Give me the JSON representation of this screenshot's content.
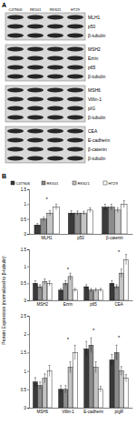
{
  "panel_a": {
    "label": "A",
    "columns": [
      "C4TN06",
      "RK501",
      "RKS21",
      "HT29"
    ],
    "groups": [
      [
        "MLH1",
        "p50",
        "β-tubulin"
      ],
      [
        "MSH2",
        "Ezrin",
        "p65",
        "β-tubulin"
      ],
      [
        "MSH6",
        "Villin-1",
        "pIG",
        "β-tubulin"
      ],
      [
        "CEA",
        "E-cadherin",
        "β-catenin",
        "β-tubulin"
      ]
    ]
  },
  "panel_b": {
    "label": "B",
    "y_label": "Protein Expression (normalized to β-tubulin)"
  },
  "chart_data": [
    {
      "type": "bar",
      "categories": [
        "MLH1",
        "p50",
        "β-catenin"
      ],
      "ylim": [
        0,
        1.5
      ],
      "yticks": [
        0,
        0.5,
        1,
        1.5
      ],
      "legend": "top",
      "series": [
        {
          "name": "C4TN06",
          "color": "#3a3a3a",
          "values": [
            0.3,
            0.7,
            0.9
          ],
          "errors": [
            0.05,
            0.08,
            0.1
          ]
        },
        {
          "name": "RK501",
          "color": "#8c8c8c",
          "values": [
            0.5,
            0.7,
            0.9
          ],
          "errors": [
            0.06,
            0.07,
            0.1
          ]
        },
        {
          "name": "RKS21",
          "color": "#c4c4c4",
          "values": [
            0.7,
            0.7,
            0.8
          ],
          "errors": [
            0.08,
            0.06,
            0.08
          ]
        },
        {
          "name": "HT29",
          "color": "#ffffff",
          "values": [
            0.9,
            0.8,
            1.0
          ],
          "errors": [
            0.1,
            0.08,
            0.12
          ]
        }
      ],
      "annotations": [
        {
          "text": "*",
          "category": 0,
          "y": 1.15
        }
      ]
    },
    {
      "type": "bar",
      "categories": [
        "MSH2",
        "Ezrin",
        "p65",
        "CEA"
      ],
      "ylim": [
        0,
        1.5
      ],
      "yticks": [
        0,
        0.5,
        1,
        1.5
      ],
      "series": [
        {
          "color": "#3a3a3a",
          "values": [
            0.5,
            0.3,
            0.4,
            0.5
          ],
          "errors": [
            0.08,
            0.05,
            0.06,
            0.08
          ]
        },
        {
          "color": "#8c8c8c",
          "values": [
            0.4,
            0.5,
            0.3,
            0.4
          ],
          "errors": [
            0.06,
            0.08,
            0.05,
            0.06
          ]
        },
        {
          "color": "#c4c4c4",
          "values": [
            0.55,
            0.7,
            0.3,
            0.8
          ],
          "errors": [
            0.08,
            0.1,
            0.05,
            0.12
          ]
        },
        {
          "color": "#ffffff",
          "values": [
            0.5,
            0.3,
            0.3,
            1.2
          ],
          "errors": [
            0.07,
            0.05,
            0.05,
            0.15
          ]
        }
      ],
      "annotations": [
        {
          "text": "*",
          "category": 1,
          "y": 0.9
        },
        {
          "text": "*",
          "category": 3,
          "y": 1.42
        }
      ]
    },
    {
      "type": "bar",
      "categories": [
        "MSH6",
        "Villin-1",
        "E-cadherin",
        "pIgR"
      ],
      "ylim": [
        0,
        2.5
      ],
      "yticks": [
        0,
        0.5,
        1,
        1.5,
        2,
        2.5
      ],
      "series": [
        {
          "color": "#3a3a3a",
          "values": [
            0.7,
            0.5,
            1.6,
            1.3
          ],
          "errors": [
            0.12,
            0.1,
            0.2,
            0.15
          ]
        },
        {
          "color": "#8c8c8c",
          "values": [
            0.6,
            0.5,
            1.7,
            1.5
          ],
          "errors": [
            0.1,
            0.1,
            0.2,
            0.2
          ]
        },
        {
          "color": "#c4c4c4",
          "values": [
            0.8,
            1.1,
            1.1,
            1.0
          ],
          "errors": [
            0.12,
            0.15,
            0.15,
            0.12
          ]
        },
        {
          "color": "#ffffff",
          "values": [
            1.0,
            1.5,
            0.5,
            0.8
          ],
          "errors": [
            0.15,
            0.2,
            0.08,
            0.1
          ]
        }
      ],
      "annotations": [
        {
          "text": "*",
          "category": 1,
          "y": 1.85
        },
        {
          "text": "*",
          "category": 2,
          "y": 2.1
        },
        {
          "text": "*",
          "category": 3,
          "y": 1.9
        }
      ]
    }
  ]
}
